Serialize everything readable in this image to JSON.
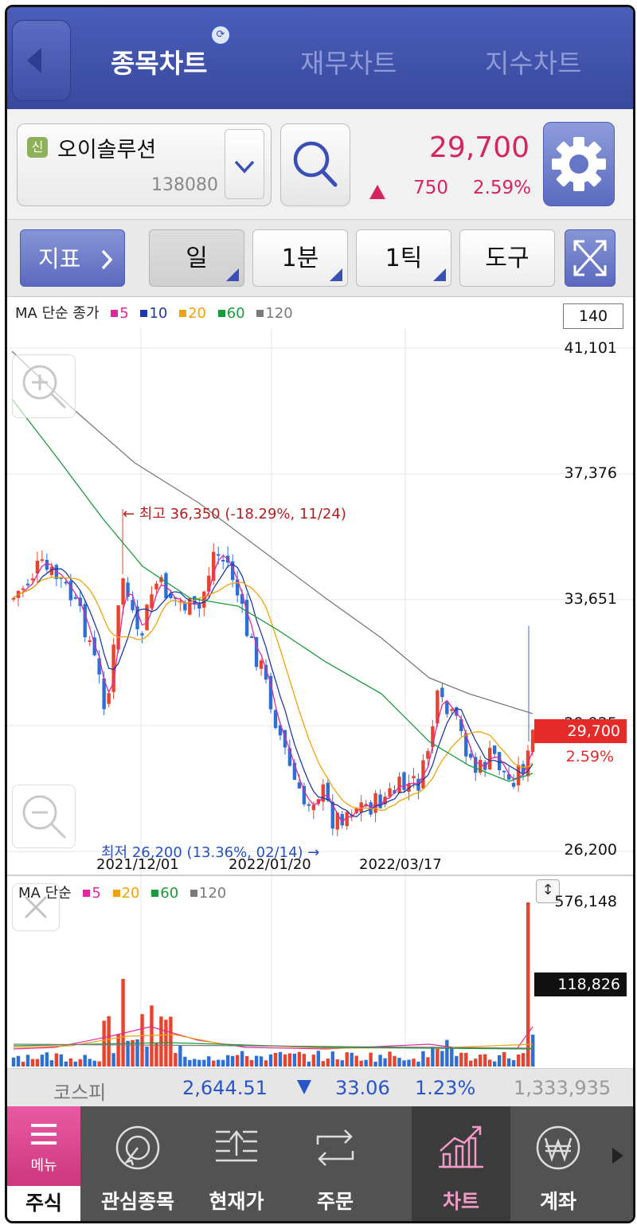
{
  "header": {
    "tabs": [
      {
        "label": "종목차트",
        "active": true
      },
      {
        "label": "재무차트",
        "active": false
      },
      {
        "label": "지수차트",
        "active": false
      }
    ]
  },
  "stock": {
    "badge": "신",
    "name": "오이솔루션",
    "code": "138080",
    "price": "29,700",
    "change": "750",
    "change_pct": "2.59%",
    "direction": "up"
  },
  "toolbar": {
    "indicator_label": "지표",
    "periods": [
      "일",
      "1분",
      "1틱"
    ],
    "selected_period": "일",
    "tools_label": "도구"
  },
  "price_chart": {
    "legend_title": "MA 단순 종가",
    "ma": [
      {
        "label": "5",
        "color": "#e0289b"
      },
      {
        "label": "10",
        "color": "#1f3aa8"
      },
      {
        "label": "20",
        "color": "#f0a20a"
      },
      {
        "label": "60",
        "color": "#1a9a3a"
      },
      {
        "label": "120",
        "color": "#7a7a7a"
      }
    ],
    "period_box": "140",
    "y_labels": [
      "41,101",
      "37,376",
      "33,651",
      "29,925",
      "26,200"
    ],
    "date_labels": [
      "2021/12/01",
      "2022/01/20",
      "2022/03/17"
    ],
    "current_price_tag": "29,700",
    "current_pct_tag": "2.59%",
    "high_annotation": "← 최고 36,350 (-18.29%, 11/24)",
    "low_annotation": "최저 26,200 (13.36%, 02/14) →",
    "up_color": "#e8432e",
    "down_color": "#2e6fd6"
  },
  "volume_chart": {
    "legend_title": "MA 단순",
    "ma": [
      {
        "label": "5",
        "color": "#e0289b"
      },
      {
        "label": "20",
        "color": "#f0a20a"
      },
      {
        "label": "60",
        "color": "#1a9a3a"
      },
      {
        "label": "120",
        "color": "#7a7a7a"
      }
    ],
    "max_label": "576,148",
    "current_volume": "118,826"
  },
  "kospi": {
    "name": "코스피",
    "value": "2,644.51",
    "change": "33.06",
    "change_pct": "1.23%",
    "volume": "1,333,935",
    "direction": "down"
  },
  "nav": {
    "menu_label": "메뉴",
    "menu_section": "주식",
    "items": [
      {
        "label": "관심종목",
        "icon": "watchlist-icon"
      },
      {
        "label": "현재가",
        "icon": "current-price-icon"
      },
      {
        "label": "주문",
        "icon": "order-icon"
      },
      {
        "label": "차트",
        "icon": "chart-icon",
        "active": true
      },
      {
        "label": "계좌",
        "icon": "won-icon"
      }
    ]
  }
}
